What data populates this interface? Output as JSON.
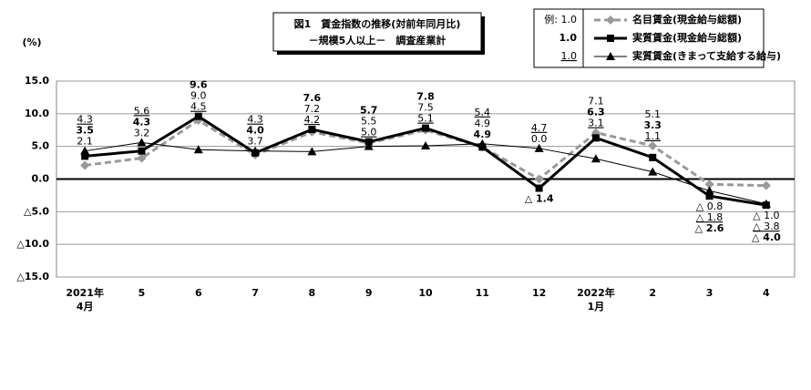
{
  "chart_data": {
    "type": "line",
    "title": "図1　賃金指数の推移(対前年同月比)",
    "subtitle": "－規模5人以上－　調査産業計",
    "y_unit": "(%)",
    "categories": [
      "2021年\n4月",
      "5",
      "6",
      "7",
      "8",
      "9",
      "10",
      "11",
      "12",
      "2022年\n1月",
      "2",
      "3",
      "4"
    ],
    "ylim": [
      -15,
      15
    ],
    "yticks": [
      {
        "value": 15,
        "label": "15.0"
      },
      {
        "value": 10,
        "label": "10.0"
      },
      {
        "value": 5,
        "label": "5.0"
      },
      {
        "value": 0,
        "label": "0.0"
      },
      {
        "value": -5,
        "label": "△5.0"
      },
      {
        "value": -10,
        "label": "△10.0"
      },
      {
        "value": -15,
        "label": "△15.0"
      }
    ],
    "grid": true,
    "legend_samples": [
      "例: 1.0",
      "1.0",
      "1.0"
    ],
    "series": [
      {
        "name": "名目賃金(現金給与総額)",
        "color": "#999999",
        "values": [
          2.1,
          3.2,
          9.0,
          3.7,
          7.2,
          5.5,
          7.5,
          4.9,
          0.0,
          7.1,
          5.1,
          -0.8,
          -1.0
        ],
        "value_labels": [
          "2.1",
          "3.2",
          "9.0",
          "3.7",
          "7.2",
          "5.5",
          "7.5",
          "4.9",
          "0.0",
          "7.1",
          "5.1",
          "△ 0.8",
          "△ 1.0"
        ]
      },
      {
        "name": "実質賃金(現金給与総額)",
        "color": "#000000",
        "values": [
          3.5,
          4.3,
          9.6,
          4.0,
          7.6,
          5.7,
          7.8,
          4.9,
          -1.4,
          6.3,
          3.3,
          -2.6,
          -4.0
        ],
        "value_labels": [
          "3.5",
          "4.3",
          "9.6",
          "4.0",
          "7.6",
          "5.7",
          "7.8",
          "4.9",
          "△ 1.4",
          "6.3",
          "3.3",
          "△ 2.6",
          "△ 4.0"
        ]
      },
      {
        "name": "実質賃金(きまって支給する給与)",
        "color": "#000000",
        "values": [
          4.3,
          5.6,
          4.5,
          4.3,
          4.2,
          5.0,
          5.1,
          5.4,
          4.7,
          3.1,
          1.1,
          -1.8,
          -3.8
        ],
        "value_labels": [
          "4.3",
          "5.6",
          "4.5",
          "4.3",
          "4.2",
          "5.0",
          "5.1",
          "5.4",
          "4.7",
          "3.1",
          "1.1",
          "△ 1.8",
          "△ 3.8"
        ]
      }
    ]
  }
}
